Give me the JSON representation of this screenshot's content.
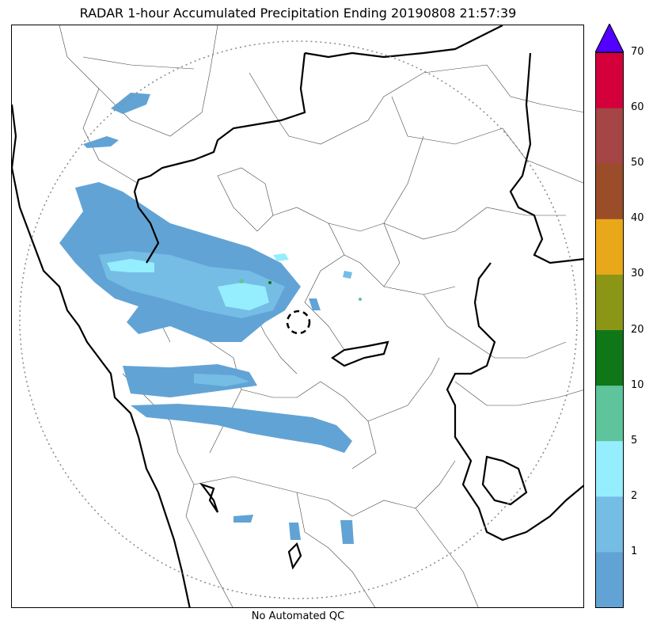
{
  "title": "RADAR 1-hour Accumulated Precipitation Ending 20190808 21:57:39",
  "footer": "No Automated QC",
  "colorbar": {
    "ticks": [
      "1",
      "2",
      "5",
      "10",
      "20",
      "30",
      "40",
      "50",
      "60",
      "70"
    ],
    "colors": [
      "#62a3d5",
      "#75bde5",
      "#95eefe",
      "#5dc49b",
      "#0f7718",
      "#8b9616",
      "#e9a81a",
      "#9b4d29",
      "#a64545",
      "#d3003c"
    ],
    "overflow_color": "#5200ff"
  },
  "map": {
    "range_ring": "dotted",
    "radar_site_marker": "dashed-circle",
    "precip_colors": {
      "light": "#62a3d5",
      "moderate": "#75bde5",
      "heavy": "#95eefe",
      "green": "#5dc49b"
    },
    "border_color": "#000000"
  }
}
